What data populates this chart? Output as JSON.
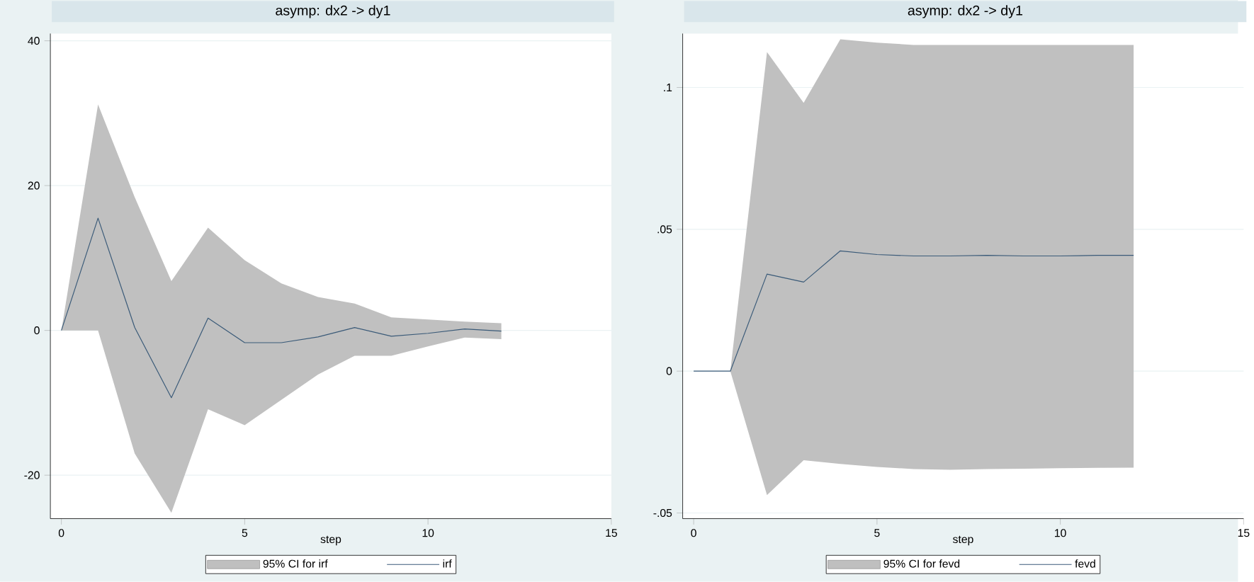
{
  "chart_data": [
    {
      "type": "line",
      "title": "asymp: dx2 -> dy1",
      "xlabel": "step",
      "x": [
        0,
        1,
        2,
        3,
        4,
        5,
        6,
        7,
        8,
        9,
        10,
        11,
        12
      ],
      "xlim": [
        -0.3,
        15
      ],
      "xticks": [
        0,
        5,
        10,
        15
      ],
      "ylim": [
        -26,
        41
      ],
      "yticks": [
        -20,
        0,
        20,
        40
      ],
      "grid": "y",
      "legend": "bottom",
      "annotations": [
        "95% CI for irf"
      ],
      "series": [
        {
          "name": "irf",
          "color": "#3a5a78",
          "values": [
            0,
            15.5,
            0.4,
            -9.3,
            1.7,
            -1.7,
            -1.7,
            -0.9,
            0.4,
            -0.8,
            -0.4,
            0.2,
            -0.1
          ],
          "lower": [
            0,
            0,
            -17,
            -25.2,
            -10.9,
            -13.1,
            -9.6,
            -6.1,
            -3.5,
            -3.5,
            -2.2,
            -1.0,
            -1.2
          ],
          "upper": [
            0,
            31.2,
            18.4,
            6.8,
            14.2,
            9.7,
            6.5,
            4.6,
            3.7,
            1.8,
            1.5,
            1.2,
            1.0
          ]
        }
      ]
    },
    {
      "type": "line",
      "title": "asymp: dx2 -> dy1",
      "xlabel": "step",
      "x": [
        0,
        1,
        2,
        3,
        4,
        5,
        6,
        7,
        8,
        9,
        10,
        11,
        12
      ],
      "xlim": [
        -0.3,
        15
      ],
      "xticks": [
        0,
        5,
        10,
        15
      ],
      "ylim": [
        -0.052,
        0.119
      ],
      "yticks": [
        {
          "value": -0.05,
          "label": "-.05"
        },
        0,
        {
          "value": 0.05,
          "label": ".05"
        },
        {
          "value": 0.1,
          "label": ".1"
        }
      ],
      "grid": "y",
      "legend": "bottom",
      "annotations": [
        "95% CI for fevd"
      ],
      "series": [
        {
          "name": "fevd",
          "color": "#3a5a78",
          "values": [
            0,
            0,
            0.0342,
            0.0314,
            0.0424,
            0.0411,
            0.0406,
            0.0406,
            0.0408,
            0.0406,
            0.0406,
            0.0408,
            0.0408
          ],
          "lower": [
            0,
            0,
            -0.0437,
            -0.0314,
            -0.0327,
            -0.0338,
            -0.0345,
            -0.0348,
            -0.0345,
            -0.0344,
            -0.0342,
            -0.0341,
            -0.034
          ],
          "upper": [
            0,
            0,
            0.1125,
            0.0946,
            0.117,
            0.1158,
            0.115,
            0.115,
            0.115,
            0.115,
            0.115,
            0.115,
            0.115
          ]
        }
      ]
    }
  ]
}
